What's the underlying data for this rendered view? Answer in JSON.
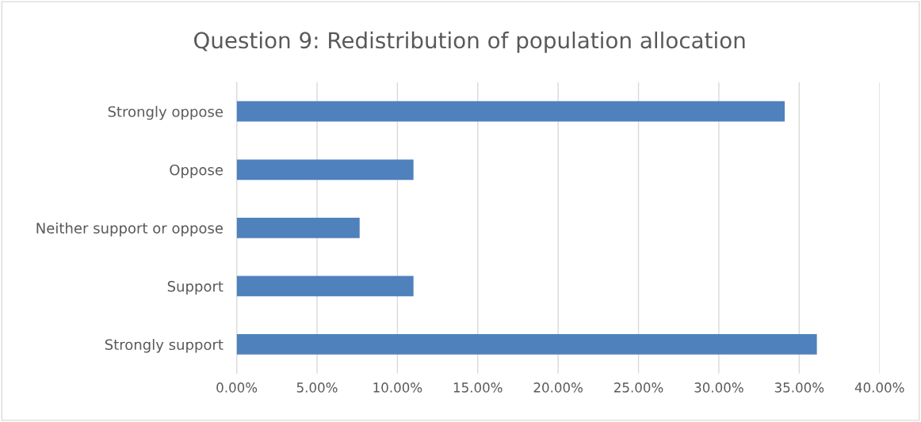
{
  "chart_data": {
    "type": "bar",
    "orientation": "horizontal",
    "title": "Question 9: Redistribution of population allocation",
    "categories": [
      "Strongly oppose",
      "Oppose",
      "Neither support or oppose",
      "Support",
      "Strongly support"
    ],
    "values": [
      34.1,
      11.0,
      7.65,
      11.0,
      36.1
    ],
    "color": "#4f81bd",
    "xlim": [
      0,
      40
    ],
    "xticks": [
      {
        "value": 0,
        "label": "0.00%"
      },
      {
        "value": 5,
        "label": "5.00%"
      },
      {
        "value": 10,
        "label": "10.00%"
      },
      {
        "value": 15,
        "label": "15.00%"
      },
      {
        "value": 20,
        "label": "20.00%"
      },
      {
        "value": 25,
        "label": "25.00%"
      },
      {
        "value": 30,
        "label": "30.00%"
      },
      {
        "value": 35,
        "label": "35.00%"
      },
      {
        "value": 40,
        "label": "40.00%"
      }
    ],
    "grid": "x",
    "legend": false
  }
}
